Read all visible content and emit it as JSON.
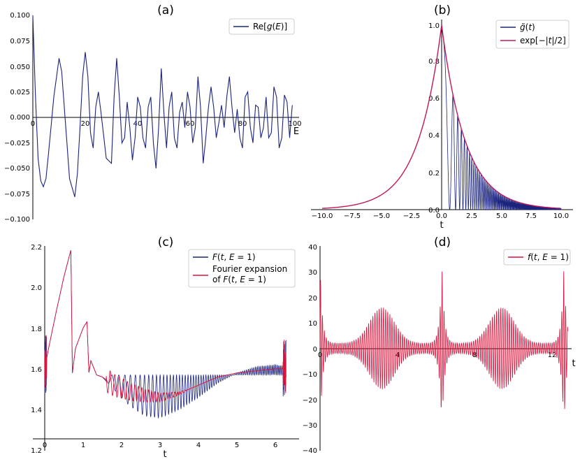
{
  "chart_data": [
    {
      "panel": "(a)",
      "type": "line",
      "title": "(a)",
      "xlabel": "E",
      "ylabel": "",
      "xlim": [
        0,
        100
      ],
      "ylim": [
        -0.1,
        0.1
      ],
      "xticks": [
        "0",
        "20",
        "40",
        "60",
        "80",
        "100"
      ],
      "yticks": [
        "0.100",
        "0.075",
        "0.050",
        "0.025",
        "0.000",
        "−0.025",
        "−0.050",
        "−0.075",
        "−0.100"
      ],
      "legend": "top-right",
      "series": [
        {
          "name": "Re[g(E)]",
          "color": "#1a237e",
          "x": [
            0,
            1,
            2,
            3,
            4,
            5,
            6,
            8,
            10,
            11,
            12,
            14,
            16,
            17,
            18,
            19,
            20,
            21,
            22,
            23,
            24,
            25,
            26,
            28,
            30,
            31,
            32,
            33,
            34,
            35,
            36,
            37,
            38,
            39,
            40,
            41,
            42,
            43,
            44,
            45,
            46,
            47,
            48,
            49,
            50,
            51,
            52,
            53,
            54,
            55,
            56,
            57,
            58,
            59,
            60,
            61,
            62,
            63,
            64,
            65,
            66,
            67,
            68,
            69,
            70,
            71,
            72,
            73,
            74,
            75,
            76,
            77,
            78,
            79,
            80,
            81,
            82,
            83,
            84,
            85,
            86,
            87,
            88,
            89,
            90,
            91,
            92,
            93,
            94,
            95,
            96,
            97,
            98,
            99
          ],
          "y": [
            0.1,
            0.02,
            -0.04,
            -0.062,
            -0.068,
            -0.06,
            -0.035,
            0.02,
            0.058,
            0.045,
            0.01,
            -0.06,
            -0.078,
            -0.055,
            -0.01,
            0.04,
            0.064,
            0.04,
            -0.015,
            -0.03,
            0.01,
            0.025,
            0.005,
            -0.04,
            -0.045,
            0.02,
            0.058,
            0.02,
            -0.025,
            -0.02,
            0.015,
            -0.01,
            -0.042,
            -0.02,
            0.02,
            0.01,
            -0.02,
            -0.03,
            0.01,
            0.02,
            -0.025,
            -0.05,
            -0.01,
            0.048,
            0.005,
            -0.03,
            0.01,
            0.025,
            -0.02,
            -0.03,
            0.005,
            0.015,
            -0.01,
            0.025,
            0.01,
            -0.025,
            -0.01,
            0.04,
            0.01,
            -0.045,
            -0.02,
            0.01,
            0.03,
            0.01,
            -0.02,
            -0.005,
            0.012,
            -0.01,
            0.02,
            0.04,
            0.01,
            -0.015,
            0.008,
            -0.02,
            -0.03,
            0.02,
            0.025,
            -0.01,
            -0.025,
            0.012,
            0.01,
            -0.02,
            -0.01,
            0.02,
            -0.02,
            -0.015,
            0.03,
            0.02,
            -0.03,
            -0.02,
            0.022,
            0.015,
            -0.02,
            0.012
          ]
        }
      ]
    },
    {
      "panel": "(b)",
      "type": "line",
      "title": "(b)",
      "xlabel": "t",
      "ylabel": "",
      "xlim": [
        -10,
        10
      ],
      "ylim": [
        0,
        1.0
      ],
      "xticks": [
        "−10.0",
        "−7.5",
        "−5.0",
        "−2.5",
        "0.0",
        "2.5",
        "5.0",
        "7.5",
        "10.0"
      ],
      "yticks": [
        "0.0",
        "0.2",
        "0.4",
        "0.6",
        "0.8",
        "1.0"
      ],
      "legend": "top-right",
      "series": [
        {
          "name": "g̃(t)",
          "color": "#1a237e",
          "note": "dense oscillation filling 0 to exp(-t/2) for t > 0"
        },
        {
          "name": "exp[−|t|/2]",
          "color": "#c2185b",
          "formula": "exp(-|t|/2)"
        }
      ]
    },
    {
      "panel": "(c)",
      "type": "line",
      "title": "(c)",
      "xlabel": "t",
      "ylabel": "",
      "xlim": [
        -0.3,
        6.6
      ],
      "ylim": [
        1.2,
        2.2
      ],
      "xticks": [
        "0",
        "1",
        "2",
        "3",
        "4",
        "5",
        "6"
      ],
      "yticks": [
        "1.2",
        "1.4",
        "1.6",
        "1.8",
        "2.0",
        "2.2"
      ],
      "legend": "top-right",
      "series": [
        {
          "name": "F(t, E = 1)",
          "color": "#1a237e",
          "x": [
            0,
            0.1,
            0.3,
            0.5,
            0.68,
            0.72,
            0.8,
            1.0,
            1.1,
            1.15,
            1.2,
            1.35,
            1.5,
            1.8,
            2.2,
            2.6,
            3.0,
            3.5,
            4.0,
            4.5,
            5.0,
            5.5,
            6.0,
            6.28
          ],
          "y": [
            1.6,
            1.7,
            1.88,
            2.05,
            2.18,
            1.58,
            1.7,
            1.8,
            1.83,
            1.58,
            1.64,
            1.57,
            1.56,
            1.5,
            1.42,
            1.37,
            1.36,
            1.4,
            1.46,
            1.53,
            1.58,
            1.61,
            1.62,
            1.61
          ],
          "upper": 1.57,
          "oscillation_start": 1.6,
          "oscillation_end": 6.25
        },
        {
          "name": "Fourier expansion of F(t, E = 1)",
          "color": "#dc143c",
          "x": [
            0,
            0.1,
            0.3,
            0.5,
            0.68,
            0.72,
            0.8,
            1.0,
            1.1,
            1.15,
            1.2,
            1.35,
            1.5,
            1.8,
            2.2,
            2.6,
            3.0,
            3.5,
            4.0,
            4.5,
            5.0,
            5.5,
            6.0,
            6.28
          ],
          "y": [
            1.6,
            1.7,
            1.88,
            2.05,
            2.18,
            1.58,
            1.7,
            1.8,
            1.83,
            1.58,
            1.64,
            1.57,
            1.56,
            1.52,
            1.49,
            1.47,
            1.46,
            1.48,
            1.52,
            1.56,
            1.58,
            1.59,
            1.6,
            1.6
          ],
          "legend_line1": "Fourier expansion",
          "legend_line2": "of F(t, E = 1)"
        }
      ]
    },
    {
      "panel": "(d)",
      "type": "line",
      "title": "(d)",
      "xlabel": "t",
      "ylabel": "",
      "xlim": [
        0,
        13
      ],
      "ylim": [
        -40,
        40
      ],
      "xticks": [
        "0",
        "4",
        "8",
        "12"
      ],
      "yticks": [
        "40",
        "30",
        "20",
        "10",
        "0",
        "−10",
        "−20",
        "−30",
        "−40"
      ],
      "legend": "top-right",
      "series": [
        {
          "name": "f(t, E = 1)",
          "color": "#dc143c",
          "note": "dense oscillation, spikes at t=0, ~6.3, ~12.6"
        }
      ]
    }
  ],
  "legend_labels": {
    "a": {
      "pre": "Re[",
      "var": "g",
      "mid": "(",
      "var2": "E",
      "post": ")]"
    },
    "b1": {
      "var": "g̃",
      "open": "(",
      "var2": "t",
      "close": ")"
    },
    "b2": {
      "pre": "exp[−|",
      "var": "t",
      "post": "|/2]"
    },
    "c1": {
      "var": "F",
      "open": "(",
      "var2": "t",
      "sep": ", ",
      "var3": "E",
      "post": " = 1)"
    },
    "c2a": "Fourier expansion",
    "c2b": {
      "pre": "of ",
      "var": "F",
      "open": "(",
      "var2": "t",
      "sep": ", ",
      "var3": "E",
      "post": " = 1)"
    },
    "d1": {
      "var": "f",
      "open": "(",
      "var2": "t",
      "sep": ", ",
      "var3": "E",
      "post": " = 1)"
    }
  }
}
